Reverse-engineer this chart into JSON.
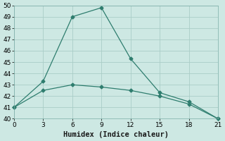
{
  "line1_x": [
    0,
    3,
    6,
    9,
    12,
    15,
    18,
    21
  ],
  "line1_y": [
    41.0,
    43.3,
    49.0,
    49.8,
    45.3,
    42.3,
    41.5,
    40.0
  ],
  "line2_x": [
    0,
    3,
    6,
    9,
    12,
    15,
    18,
    21
  ],
  "line2_y": [
    41.0,
    42.5,
    43.0,
    42.8,
    42.5,
    42.0,
    41.3,
    40.0
  ],
  "line_color": "#2e7d6e",
  "marker": "D",
  "markersize": 2.5,
  "linewidth": 0.9,
  "xlabel": "Humidex (Indice chaleur)",
  "xlim": [
    0,
    21
  ],
  "ylim": [
    40,
    50
  ],
  "yticks": [
    40,
    41,
    42,
    43,
    44,
    45,
    46,
    47,
    48,
    49,
    50
  ],
  "xticks": [
    0,
    3,
    6,
    9,
    12,
    15,
    18,
    21
  ],
  "background_color": "#cde8e3",
  "grid_color": "#aacdc7",
  "tick_labelsize": 6.5,
  "xlabel_fontsize": 7.5,
  "fig_width": 3.2,
  "fig_height": 2.0,
  "dpi": 100
}
